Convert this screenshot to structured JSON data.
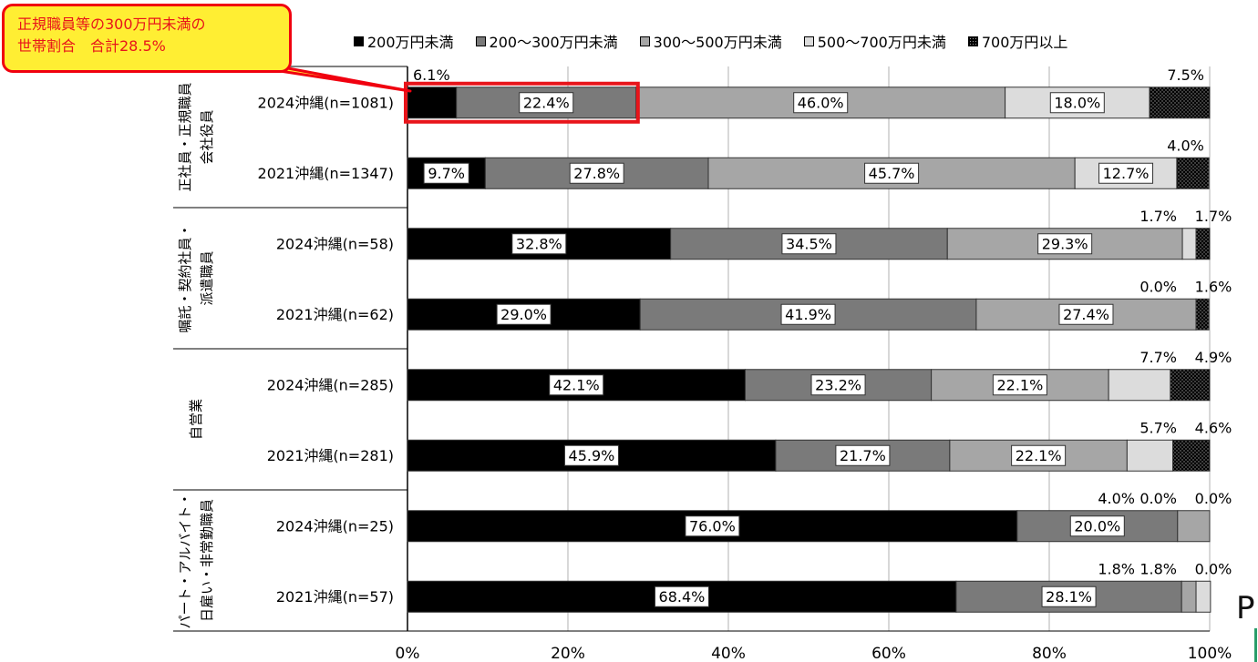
{
  "callout": {
    "line1": "正規職員等の300万円未満の",
    "line2": "世帯割合　合計28.5%"
  },
  "colors": {
    "under200": "#000000",
    "200to300": "#7a7a7a",
    "300to500": "#a6a6a6",
    "500to700": "#dcdcdc",
    "over700": "#000000",
    "callout_fill": "#ffee33",
    "callout_border": "#f0000f",
    "highlight": "#e8141a"
  },
  "chart_data": {
    "type": "bar",
    "orientation": "horizontal",
    "stacked": true,
    "xlim": [
      0,
      100
    ],
    "x_ticks": [
      "0%",
      "20%",
      "40%",
      "60%",
      "80%",
      "100%"
    ],
    "legend_position": "top",
    "grid": true,
    "series": [
      {
        "name": "200万円未満",
        "pattern": "solid-black"
      },
      {
        "name": "200～300万円未満",
        "pattern": "dark-gray"
      },
      {
        "name": "300～500万円未満",
        "pattern": "mid-gray"
      },
      {
        "name": "500～700万円未満",
        "pattern": "light-gray"
      },
      {
        "name": "700万円以上",
        "pattern": "dotted"
      }
    ],
    "groups": [
      {
        "label_lines": [
          "正社員・正規職員",
          "会社役員"
        ]
      },
      {
        "label_lines": [
          "嘱託・契約社員・",
          "派遣職員"
        ]
      },
      {
        "label_lines": [
          "自営業"
        ]
      },
      {
        "label_lines": [
          "パート・アルバイト・",
          "日雇い・非常勤職員"
        ]
      }
    ],
    "rows": [
      {
        "label": "2024沖縄(n=1081)",
        "group": 0,
        "values": [
          6.1,
          22.4,
          46.0,
          18.0,
          7.5
        ],
        "labels": [
          "6.1%",
          "22.4%",
          "46.0%",
          "18.0%",
          "7.5%"
        ]
      },
      {
        "label": "2021沖縄(n=1347)",
        "group": 0,
        "values": [
          9.7,
          27.8,
          45.7,
          12.7,
          4.0
        ],
        "labels": [
          "9.7%",
          "27.8%",
          "45.7%",
          "12.7%",
          "4.0%"
        ]
      },
      {
        "label": "2024沖縄(n=58)",
        "group": 1,
        "values": [
          32.8,
          34.5,
          29.3,
          1.7,
          1.7
        ],
        "labels": [
          "32.8%",
          "34.5%",
          "29.3%",
          "1.7%",
          "1.7%"
        ]
      },
      {
        "label": "2021沖縄(n=62)",
        "group": 1,
        "values": [
          29.0,
          41.9,
          27.4,
          0.0,
          1.6
        ],
        "labels": [
          "29.0%",
          "41.9%",
          "27.4%",
          "0.0%",
          "1.6%"
        ]
      },
      {
        "label": "2024沖縄(n=285)",
        "group": 2,
        "values": [
          42.1,
          23.2,
          22.1,
          7.7,
          4.9
        ],
        "labels": [
          "42.1%",
          "23.2%",
          "22.1%",
          "7.7%",
          "4.9%"
        ]
      },
      {
        "label": "2021沖縄(n=281)",
        "group": 2,
        "values": [
          45.9,
          21.7,
          22.1,
          5.7,
          4.6
        ],
        "labels": [
          "45.9%",
          "21.7%",
          "22.1%",
          "5.7%",
          "4.6%"
        ]
      },
      {
        "label": "2024沖縄(n=25)",
        "group": 3,
        "values": [
          76.0,
          20.0,
          4.0,
          0.0,
          0.0
        ],
        "labels": [
          "76.0%",
          "20.0%",
          "4.0%",
          "0.0%",
          "0.0%"
        ]
      },
      {
        "label": "2021沖縄(n=57)",
        "group": 3,
        "values": [
          68.4,
          28.1,
          1.8,
          1.8,
          0.0
        ],
        "labels": [
          "68.4%",
          "28.1%",
          "1.8%",
          "1.8%",
          "0.0%"
        ]
      }
    ],
    "highlight": {
      "row": 0,
      "segments": [
        0,
        1
      ]
    }
  },
  "footer": {
    "corner_text": "P"
  }
}
